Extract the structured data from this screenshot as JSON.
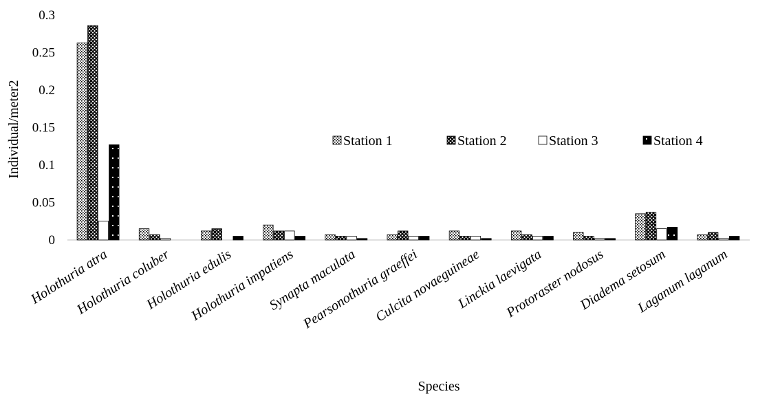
{
  "chart_data": {
    "type": "bar",
    "title": "",
    "xlabel": "Species",
    "ylabel": "Individual/meter2",
    "ylim": [
      0,
      0.3
    ],
    "yticks": [
      0,
      0.05,
      0.1,
      0.15,
      0.2,
      0.25,
      0.3
    ],
    "ytick_labels": [
      "0",
      "0.05",
      "0.1",
      "0.15",
      "0.2",
      "0.25",
      "0.3"
    ],
    "grid": false,
    "legend_position": "center-right",
    "categories": [
      "Holothuria atra",
      "Holothuria coluber",
      "Holothuria edulis",
      "Holothuria impatiens",
      "Synapta maculata",
      "Pearsonothuria graeffei",
      "Culcita novaeguineae",
      "Linckia laevigata",
      "Protoraster nodosus",
      "Diadema setosum",
      "Laganum laganum"
    ],
    "series": [
      {
        "name": "Station 1",
        "pattern": "dots",
        "values": [
          0.263,
          0.015,
          0.012,
          0.02,
          0.007,
          0.007,
          0.012,
          0.012,
          0.01,
          0.035,
          0.007
        ]
      },
      {
        "name": "Station 2",
        "pattern": "crosshatch",
        "values": [
          0.286,
          0.007,
          0.015,
          0.012,
          0.005,
          0.012,
          0.005,
          0.007,
          0.005,
          0.037,
          0.01
        ]
      },
      {
        "name": "Station 3",
        "pattern": "white",
        "values": [
          0.025,
          0.002,
          0.0,
          0.012,
          0.005,
          0.005,
          0.005,
          0.005,
          0.002,
          0.015,
          0.002
        ]
      },
      {
        "name": "Station 4",
        "pattern": "black-dots",
        "values": [
          0.127,
          0.0,
          0.005,
          0.005,
          0.002,
          0.005,
          0.002,
          0.005,
          0.002,
          0.017,
          0.005
        ]
      }
    ]
  }
}
